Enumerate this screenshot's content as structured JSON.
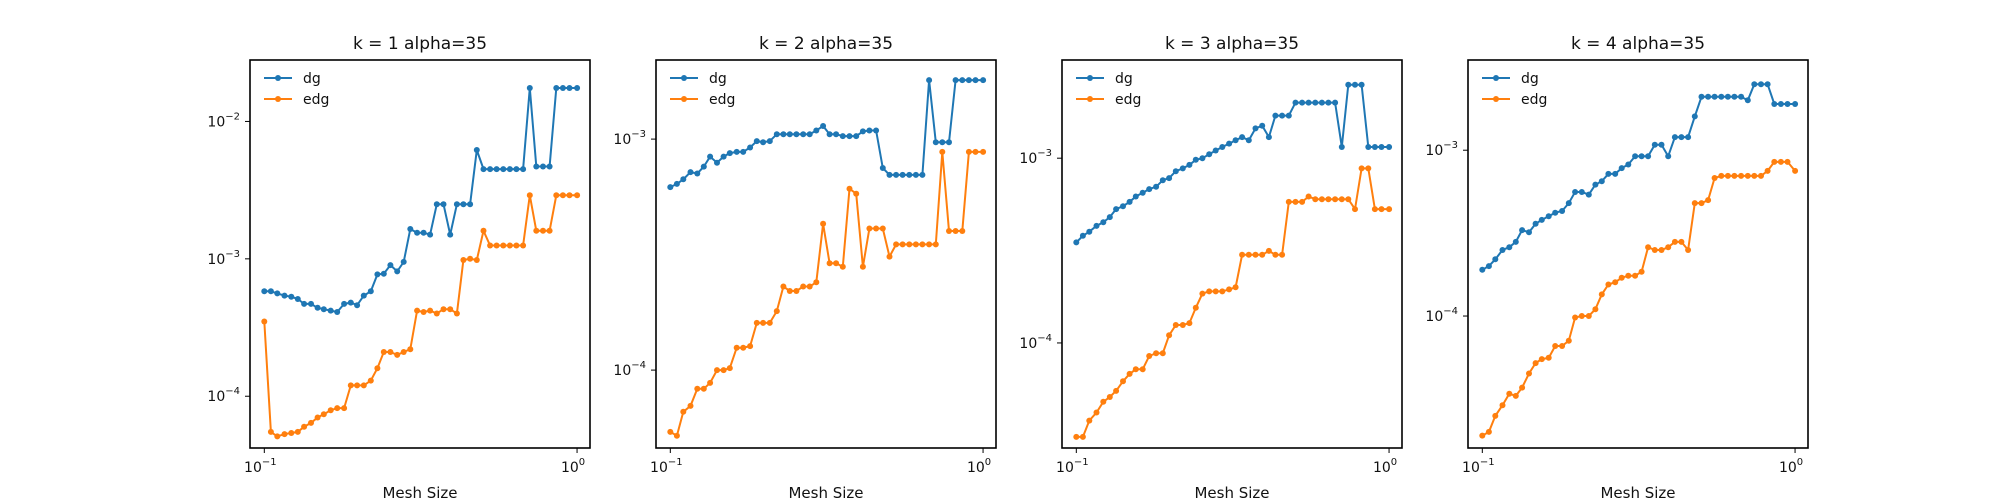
{
  "colors": {
    "dg": "#1f77b4",
    "edg": "#ff7f0e",
    "frame": "#000000"
  },
  "chart_data": [
    {
      "type": "line",
      "title": "k = 1 alpha=35",
      "xlabel": "Mesh Size",
      "ylabel": "",
      "xscale": "log",
      "yscale": "log",
      "xlim": [
        0.09,
        1.1
      ],
      "ylim": [
        4.2e-05,
        0.028
      ],
      "grid": false,
      "legend": "top-left",
      "xticks": [
        {
          "v": 0.1,
          "label": "10",
          "exp": "−1"
        },
        {
          "v": 1,
          "label": "10",
          "exp": "0"
        }
      ],
      "yticks": [
        {
          "v": 0.0001,
          "label": "10",
          "exp": "−4"
        },
        {
          "v": 0.001,
          "label": "10",
          "exp": "−3"
        },
        {
          "v": 0.01,
          "label": "10",
          "exp": "−2"
        }
      ],
      "series": [
        {
          "name": "dg",
          "color": "#1f77b4",
          "x": [
            0.1,
            0.105,
            0.11,
            0.116,
            0.122,
            0.128,
            0.134,
            0.141,
            0.148,
            0.155,
            0.163,
            0.171,
            0.18,
            0.189,
            0.198,
            0.208,
            0.219,
            0.23,
            0.241,
            0.253,
            0.266,
            0.279,
            0.293,
            0.308,
            0.323,
            0.339,
            0.356,
            0.374,
            0.393,
            0.413,
            0.433,
            0.455,
            0.478,
            0.502,
            0.527,
            0.553,
            0.581,
            0.61,
            0.64,
            0.672,
            0.706,
            0.741,
            0.778,
            0.817,
            0.858,
            0.901,
            0.946,
            1.0
          ],
          "y": [
            0.00058,
            0.00058,
            0.00056,
            0.00054,
            0.00053,
            0.00051,
            0.00047,
            0.00047,
            0.00044,
            0.00043,
            0.00042,
            0.00041,
            0.00047,
            0.00048,
            0.00046,
            0.00054,
            0.00058,
            0.00077,
            0.00078,
            0.0009,
            0.00081,
            0.00095,
            0.00165,
            0.00155,
            0.00155,
            0.0015,
            0.0025,
            0.0025,
            0.0015,
            0.0025,
            0.0025,
            0.0025,
            0.0062,
            0.0045,
            0.0045,
            0.0045,
            0.0045,
            0.0045,
            0.0045,
            0.0045,
            0.0175,
            0.0047,
            0.0047,
            0.0047,
            0.0175,
            0.0175,
            0.0175,
            0.0175
          ]
        },
        {
          "name": "edg",
          "color": "#ff7f0e",
          "x": [
            0.1,
            0.105,
            0.11,
            0.116,
            0.122,
            0.128,
            0.134,
            0.141,
            0.148,
            0.155,
            0.163,
            0.171,
            0.18,
            0.189,
            0.198,
            0.208,
            0.219,
            0.23,
            0.241,
            0.253,
            0.266,
            0.279,
            0.293,
            0.308,
            0.323,
            0.339,
            0.356,
            0.374,
            0.393,
            0.413,
            0.433,
            0.455,
            0.478,
            0.502,
            0.527,
            0.553,
            0.581,
            0.61,
            0.64,
            0.672,
            0.706,
            0.741,
            0.778,
            0.817,
            0.858,
            0.901,
            0.946,
            1.0
          ],
          "y": [
            0.00035,
            5.5e-05,
            5.1e-05,
            5.3e-05,
            5.4e-05,
            5.5e-05,
            6e-05,
            6.4e-05,
            7e-05,
            7.4e-05,
            7.9e-05,
            8.2e-05,
            8.2e-05,
            0.00012,
            0.00012,
            0.00012,
            0.00013,
            0.00016,
            0.00021,
            0.00021,
            0.0002,
            0.00021,
            0.00022,
            0.00042,
            0.00041,
            0.00042,
            0.0004,
            0.00043,
            0.00043,
            0.0004,
            0.00098,
            0.001,
            0.00098,
            0.0016,
            0.00125,
            0.00125,
            0.00125,
            0.00125,
            0.00125,
            0.00125,
            0.0029,
            0.0016,
            0.0016,
            0.0016,
            0.0029,
            0.0029,
            0.0029,
            0.0029
          ]
        }
      ]
    },
    {
      "type": "line",
      "title": "k = 2 alpha=35",
      "xlabel": "Mesh Size",
      "ylabel": "",
      "xscale": "log",
      "yscale": "log",
      "xlim": [
        0.09,
        1.1
      ],
      "ylim": [
        4.6e-05,
        0.0022
      ],
      "grid": false,
      "legend": "top-left",
      "xticks": [
        {
          "v": 0.1,
          "label": "10",
          "exp": "−1"
        },
        {
          "v": 1,
          "label": "10",
          "exp": "0"
        }
      ],
      "yticks": [
        {
          "v": 0.0001,
          "label": "10",
          "exp": "−4"
        },
        {
          "v": 0.001,
          "label": "10",
          "exp": "−3"
        }
      ],
      "series": [
        {
          "name": "dg",
          "color": "#1f77b4",
          "x": [
            0.1,
            0.105,
            0.11,
            0.116,
            0.122,
            0.128,
            0.134,
            0.141,
            0.148,
            0.155,
            0.163,
            0.171,
            0.18,
            0.189,
            0.198,
            0.208,
            0.219,
            0.23,
            0.241,
            0.253,
            0.266,
            0.279,
            0.293,
            0.308,
            0.323,
            0.339,
            0.356,
            0.374,
            0.393,
            0.413,
            0.433,
            0.455,
            0.478,
            0.502,
            0.527,
            0.553,
            0.581,
            0.61,
            0.64,
            0.672,
            0.706,
            0.741,
            0.778,
            0.817,
            0.858,
            0.901,
            0.946,
            1.0
          ],
          "y": [
            0.00062,
            0.00064,
            0.00067,
            0.00072,
            0.00071,
            0.00076,
            0.00084,
            0.00079,
            0.00084,
            0.00087,
            0.00088,
            0.00088,
            0.00092,
            0.00098,
            0.00097,
            0.00098,
            0.00105,
            0.00105,
            0.00105,
            0.00105,
            0.00105,
            0.00105,
            0.00109,
            0.00114,
            0.00105,
            0.00105,
            0.00103,
            0.00103,
            0.00103,
            0.00108,
            0.00109,
            0.00109,
            0.00075,
            0.0007,
            0.0007,
            0.0007,
            0.0007,
            0.0007,
            0.0007,
            0.0018,
            0.00097,
            0.00097,
            0.00097,
            0.0018,
            0.0018,
            0.0018,
            0.0018,
            0.0018
          ]
        },
        {
          "name": "edg",
          "color": "#ff7f0e",
          "x": [
            0.1,
            0.105,
            0.11,
            0.116,
            0.122,
            0.128,
            0.134,
            0.141,
            0.148,
            0.155,
            0.163,
            0.171,
            0.18,
            0.189,
            0.198,
            0.208,
            0.219,
            0.23,
            0.241,
            0.253,
            0.266,
            0.279,
            0.293,
            0.308,
            0.323,
            0.339,
            0.356,
            0.374,
            0.393,
            0.413,
            0.433,
            0.455,
            0.478,
            0.502,
            0.527,
            0.553,
            0.581,
            0.61,
            0.64,
            0.672,
            0.706,
            0.741,
            0.778,
            0.817,
            0.858,
            0.901,
            0.946,
            1.0
          ],
          "y": [
            5.4e-05,
            5.2e-05,
            6.6e-05,
            7e-05,
            8.3e-05,
            8.3e-05,
            8.8e-05,
            0.0001,
            0.0001,
            0.000102,
            0.000125,
            0.000125,
            0.000127,
            0.00016,
            0.00016,
            0.00016,
            0.00018,
            0.00023,
            0.00022,
            0.00022,
            0.00023,
            0.00023,
            0.00024,
            0.00043,
            0.00029,
            0.00029,
            0.00028,
            0.00061,
            0.00058,
            0.00028,
            0.00041,
            0.00041,
            0.00041,
            0.00031,
            0.00035,
            0.00035,
            0.00035,
            0.00035,
            0.00035,
            0.00035,
            0.00035,
            0.00088,
            0.0004,
            0.0004,
            0.0004,
            0.00088,
            0.00088,
            0.00088
          ]
        }
      ]
    },
    {
      "type": "line",
      "title": "k = 3 alpha=35",
      "xlabel": "Mesh Size",
      "ylabel": "",
      "xscale": "log",
      "yscale": "log",
      "xlim": [
        0.09,
        1.1
      ],
      "ylim": [
        2.7e-05,
        0.0034
      ],
      "grid": false,
      "legend": "top-left",
      "xticks": [
        {
          "v": 0.1,
          "label": "10",
          "exp": "−1"
        },
        {
          "v": 1,
          "label": "10",
          "exp": "0"
        }
      ],
      "yticks": [
        {
          "v": 0.0001,
          "label": "10",
          "exp": "−4"
        },
        {
          "v": 0.001,
          "label": "10",
          "exp": "−3"
        }
      ],
      "series": [
        {
          "name": "dg",
          "color": "#1f77b4",
          "x": [
            0.1,
            0.105,
            0.11,
            0.116,
            0.122,
            0.128,
            0.134,
            0.141,
            0.148,
            0.155,
            0.163,
            0.171,
            0.18,
            0.189,
            0.198,
            0.208,
            0.219,
            0.23,
            0.241,
            0.253,
            0.266,
            0.279,
            0.293,
            0.308,
            0.323,
            0.339,
            0.356,
            0.374,
            0.393,
            0.413,
            0.433,
            0.455,
            0.478,
            0.502,
            0.527,
            0.553,
            0.581,
            0.61,
            0.64,
            0.672,
            0.706,
            0.741,
            0.778,
            0.817,
            0.858,
            0.901,
            0.946,
            1.0
          ],
          "y": [
            0.00035,
            0.00038,
            0.0004,
            0.00043,
            0.00045,
            0.00048,
            0.00053,
            0.00055,
            0.00058,
            0.00062,
            0.00065,
            0.00068,
            0.0007,
            0.00076,
            0.00078,
            0.00085,
            0.00088,
            0.00092,
            0.00098,
            0.001,
            0.00105,
            0.0011,
            0.00115,
            0.0012,
            0.00125,
            0.0013,
            0.00125,
            0.00145,
            0.0015,
            0.0013,
            0.0017,
            0.0017,
            0.0017,
            0.002,
            0.002,
            0.002,
            0.002,
            0.002,
            0.002,
            0.002,
            0.00115,
            0.0025,
            0.0025,
            0.0025,
            0.00115,
            0.00115,
            0.00115,
            0.00115
          ]
        },
        {
          "name": "edg",
          "color": "#ff7f0e",
          "x": [
            0.1,
            0.105,
            0.11,
            0.116,
            0.122,
            0.128,
            0.134,
            0.141,
            0.148,
            0.155,
            0.163,
            0.171,
            0.18,
            0.189,
            0.198,
            0.208,
            0.219,
            0.23,
            0.241,
            0.253,
            0.266,
            0.279,
            0.293,
            0.308,
            0.323,
            0.339,
            0.356,
            0.374,
            0.393,
            0.413,
            0.433,
            0.455,
            0.478,
            0.502,
            0.527,
            0.553,
            0.581,
            0.61,
            0.64,
            0.672,
            0.706,
            0.741,
            0.778,
            0.817,
            0.858,
            0.901,
            0.946,
            1.0
          ],
          "y": [
            3.1e-05,
            3.1e-05,
            3.8e-05,
            4.2e-05,
            4.8e-05,
            5.1e-05,
            5.5e-05,
            6.2e-05,
            6.8e-05,
            7.2e-05,
            7.2e-05,
            8.5e-05,
            8.8e-05,
            8.8e-05,
            0.00011,
            0.000125,
            0.000125,
            0.000128,
            0.000155,
            0.000185,
            0.00019,
            0.00019,
            0.00019,
            0.000195,
            0.0002,
            0.0003,
            0.0003,
            0.0003,
            0.0003,
            0.000315,
            0.0003,
            0.0003,
            0.00058,
            0.00058,
            0.00058,
            0.00062,
            0.0006,
            0.0006,
            0.0006,
            0.0006,
            0.0006,
            0.0006,
            0.00053,
            0.00088,
            0.00088,
            0.00053,
            0.00053,
            0.00053
          ]
        }
      ]
    },
    {
      "type": "line",
      "title": "k = 4 alpha=35",
      "xlabel": "Mesh Size",
      "ylabel": "",
      "xscale": "log",
      "yscale": "log",
      "xlim": [
        0.09,
        1.1
      ],
      "ylim": [
        1.6e-05,
        0.0035
      ],
      "grid": false,
      "legend": "top-left",
      "xticks": [
        {
          "v": 0.1,
          "label": "10",
          "exp": "−1"
        },
        {
          "v": 1,
          "label": "10",
          "exp": "0"
        }
      ],
      "yticks": [
        {
          "v": 0.0001,
          "label": "10",
          "exp": "−4"
        },
        {
          "v": 0.001,
          "label": "10",
          "exp": "−3"
        }
      ],
      "series": [
        {
          "name": "dg",
          "color": "#1f77b4",
          "x": [
            0.1,
            0.105,
            0.11,
            0.116,
            0.122,
            0.128,
            0.134,
            0.141,
            0.148,
            0.155,
            0.163,
            0.171,
            0.18,
            0.189,
            0.198,
            0.208,
            0.219,
            0.23,
            0.241,
            0.253,
            0.266,
            0.279,
            0.293,
            0.308,
            0.323,
            0.339,
            0.356,
            0.374,
            0.393,
            0.413,
            0.433,
            0.455,
            0.478,
            0.502,
            0.527,
            0.553,
            0.581,
            0.61,
            0.64,
            0.672,
            0.706,
            0.741,
            0.778,
            0.817,
            0.858,
            0.901,
            0.946,
            1.0
          ],
          "y": [
            0.00019,
            0.0002,
            0.00022,
            0.00025,
            0.00026,
            0.00028,
            0.00033,
            0.00032,
            0.00036,
            0.00038,
            0.0004,
            0.00042,
            0.00043,
            0.00048,
            0.00056,
            0.00056,
            0.00054,
            0.00062,
            0.00065,
            0.00072,
            0.00072,
            0.00078,
            0.00082,
            0.00092,
            0.00092,
            0.00092,
            0.00108,
            0.00108,
            0.00092,
            0.0012,
            0.0012,
            0.0012,
            0.0016,
            0.0021,
            0.0021,
            0.0021,
            0.0021,
            0.0021,
            0.0021,
            0.0021,
            0.002,
            0.0025,
            0.0025,
            0.0025,
            0.0019,
            0.0019,
            0.0019,
            0.0019
          ]
        },
        {
          "name": "edg",
          "color": "#ff7f0e",
          "x": [
            0.1,
            0.105,
            0.11,
            0.116,
            0.122,
            0.128,
            0.134,
            0.141,
            0.148,
            0.155,
            0.163,
            0.171,
            0.18,
            0.189,
            0.198,
            0.208,
            0.219,
            0.23,
            0.241,
            0.253,
            0.266,
            0.279,
            0.293,
            0.308,
            0.323,
            0.339,
            0.356,
            0.374,
            0.393,
            0.413,
            0.433,
            0.455,
            0.478,
            0.502,
            0.527,
            0.553,
            0.581,
            0.61,
            0.64,
            0.672,
            0.706,
            0.741,
            0.778,
            0.817,
            0.858,
            0.901,
            0.946,
            1.0
          ],
          "y": [
            1.9e-05,
            2e-05,
            2.5e-05,
            2.9e-05,
            3.4e-05,
            3.3e-05,
            3.7e-05,
            4.5e-05,
            5.2e-05,
            5.5e-05,
            5.6e-05,
            6.6e-05,
            6.6e-05,
            7.1e-05,
            9.8e-05,
            0.0001,
            0.0001,
            0.00011,
            0.000135,
            0.000155,
            0.00016,
            0.00017,
            0.000175,
            0.000175,
            0.000185,
            0.00026,
            0.00025,
            0.00025,
            0.00026,
            0.00028,
            0.00028,
            0.00025,
            0.00048,
            0.00048,
            0.0005,
            0.00068,
            0.0007,
            0.0007,
            0.0007,
            0.0007,
            0.0007,
            0.0007,
            0.0007,
            0.00075,
            0.00085,
            0.00085,
            0.00085,
            0.00075
          ]
        }
      ]
    }
  ]
}
